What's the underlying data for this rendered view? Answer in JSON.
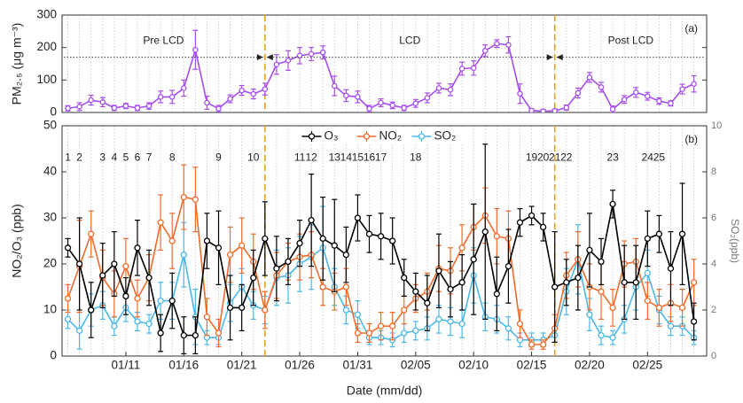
{
  "chart_data": [
    {
      "type": "line",
      "panel_label": "(a)",
      "ylabel": "PM₂.₅ (μg m⁻³)",
      "ylim": [
        0,
        300
      ],
      "yticks": [
        0,
        100,
        200,
        300
      ],
      "color": "#a64df0",
      "values": [
        13,
        18,
        38,
        32,
        14,
        20,
        14,
        20,
        48,
        48,
        75,
        193,
        30,
        12,
        42,
        68,
        57,
        72,
        148,
        160,
        175,
        180,
        185,
        82,
        52,
        48,
        12,
        30,
        22,
        14,
        28,
        45,
        75,
        70,
        135,
        137,
        190,
        212,
        208,
        58,
        6,
        4,
        5,
        15,
        60,
        108,
        78,
        10,
        40,
        62,
        50,
        35,
        28,
        72,
        88
      ],
      "errors": [
        8,
        12,
        15,
        14,
        8,
        8,
        8,
        10,
        18,
        20,
        25,
        60,
        20,
        10,
        12,
        15,
        15,
        18,
        30,
        30,
        25,
        20,
        20,
        30,
        18,
        18,
        10,
        12,
        10,
        8,
        12,
        15,
        15,
        18,
        20,
        22,
        18,
        12,
        25,
        30,
        5,
        5,
        5,
        8,
        15,
        15,
        15,
        10,
        12,
        15,
        12,
        10,
        8,
        15,
        25
      ],
      "phases": [
        "Pre LCD",
        "LCD",
        "Post LCD"
      ],
      "phase_boundaries": [
        17,
        42
      ],
      "phase_arrow_level": 170,
      "phase_label_level": 220,
      "divider_color": "#e8a31c"
    },
    {
      "type": "line",
      "panel_label": "(b)",
      "xlabel": "Date (mm/dd)",
      "ylabel": "NO₂/O₃ (ppb)",
      "y2label": "SO₂(ppb)",
      "categories": [
        null,
        null,
        null,
        null,
        null,
        "01/11",
        null,
        null,
        null,
        null,
        "01/16",
        null,
        null,
        null,
        null,
        "01/21",
        null,
        null,
        null,
        null,
        "01/26",
        null,
        null,
        null,
        null,
        "01/31",
        null,
        null,
        null,
        null,
        "02/05",
        null,
        null,
        null,
        null,
        "02/10",
        null,
        null,
        null,
        null,
        "02/15",
        null,
        null,
        null,
        null,
        "02/20",
        null,
        null,
        null,
        null,
        "02/25",
        null,
        null,
        null,
        null
      ],
      "ylim": [
        0,
        50
      ],
      "yticks": [
        0,
        10,
        20,
        30,
        40,
        50
      ],
      "y2lim": [
        0,
        10
      ],
      "y2ticks": [
        0,
        2,
        4,
        6,
        8,
        10
      ],
      "grid": true,
      "legend": "upper center",
      "event_level": 43,
      "event_labels": [
        "1",
        "2",
        null,
        "3",
        "4",
        "5",
        "6",
        "7",
        null,
        "8",
        null,
        null,
        null,
        "9",
        null,
        null,
        "10",
        null,
        null,
        null,
        "11",
        "12",
        null,
        "13",
        "14",
        "15",
        "16",
        "17",
        null,
        null,
        "18",
        null,
        null,
        null,
        null,
        null,
        null,
        null,
        null,
        null,
        "19",
        "20",
        "21",
        "22",
        null,
        null,
        null,
        "23",
        null,
        null,
        "24",
        "25",
        null,
        null,
        null
      ],
      "series": [
        {
          "name": "O₃",
          "color": "#000000",
          "values": [
            23.5,
            20,
            10,
            17.5,
            20,
            13,
            23.5,
            17,
            5,
            12,
            4.5,
            4.5,
            25,
            23.5,
            10.5,
            10.5,
            17,
            25.5,
            19,
            20.5,
            24.5,
            29.5,
            25.5,
            24,
            22,
            30,
            26.5,
            26,
            25,
            17,
            14,
            11.5,
            18.5,
            14.5,
            16,
            21,
            27,
            13.5,
            19.5,
            29,
            30.5,
            28,
            15,
            16,
            17,
            23,
            20.5,
            33,
            16,
            16,
            25.5,
            26.5,
            19,
            26.5,
            7.5
          ],
          "errors": [
            2,
            10,
            6,
            7,
            7,
            4,
            6,
            6,
            4,
            6,
            4,
            4,
            6,
            8,
            7,
            5,
            6,
            8,
            7,
            5,
            5,
            10,
            9,
            10,
            6,
            5,
            4,
            5,
            5,
            4,
            4,
            6,
            8,
            6,
            6,
            12,
            19,
            8,
            8,
            3,
            2,
            3,
            12,
            5,
            7,
            8,
            5,
            3,
            8,
            8,
            6,
            4,
            8,
            11,
            4
          ]
        },
        {
          "name": "NO₂",
          "color": "#f26b2a",
          "values": [
            12.5,
            19.5,
            26.5,
            17,
            13.5,
            19.5,
            12.5,
            17,
            29,
            25,
            34.5,
            34,
            8.5,
            5,
            22,
            24,
            20.5,
            10,
            17.5,
            20.5,
            21.5,
            22,
            15,
            14,
            15,
            5,
            5,
            6.5,
            6.5,
            10,
            12.5,
            14,
            19,
            18.5,
            23.5,
            28,
            30.5,
            26,
            25.5,
            7,
            2.5,
            2.5,
            6,
            17.5,
            21,
            15,
            14,
            10.5,
            20,
            20.5,
            12,
            10.5,
            11.5,
            10.5,
            16
          ],
          "errors": [
            3,
            10,
            5,
            6,
            5,
            6,
            4,
            5,
            6,
            6,
            7,
            7,
            4,
            3,
            6,
            6,
            6,
            4,
            5,
            4,
            5,
            5,
            4,
            4,
            4,
            2,
            2,
            3,
            3,
            3,
            3,
            4,
            5,
            5,
            5,
            5,
            6,
            6,
            6,
            3,
            1,
            1,
            3,
            5,
            6,
            5,
            6,
            4,
            5,
            5,
            4,
            4,
            4,
            4,
            5
          ]
        },
        {
          "name": "SO₂",
          "color": "#4ab8e8",
          "axis": "y2",
          "values": [
            1.6,
            1.1,
            2,
            2.2,
            1.3,
            2.1,
            1.5,
            1.4,
            2.4,
            2.4,
            4.4,
            1.7,
            0.8,
            0.8,
            2.3,
            3,
            2.2,
            2,
            3.4,
            3.5,
            4,
            4.3,
            4.7,
            3,
            2,
            1.8,
            0.8,
            0.8,
            0.7,
            1,
            1.1,
            1.2,
            1.6,
            1.5,
            1.4,
            3.5,
            1.7,
            1.6,
            1.2,
            0.7,
            0.7,
            0.7,
            0.9,
            2.8,
            4.2,
            1.8,
            0.9,
            0.8,
            1.6,
            3,
            3.6,
            2,
            1.3,
            1.3,
            0.8
          ],
          "errors": [
            0.4,
            0.8,
            0.7,
            0.6,
            0.4,
            0.6,
            0.4,
            0.4,
            0.8,
            0.8,
            1.4,
            1.2,
            0.3,
            0.3,
            0.8,
            0.8,
            0.6,
            0.6,
            1.2,
            1.2,
            1.2,
            1.4,
            1.8,
            0.8,
            0.6,
            0.6,
            0.3,
            0.3,
            0.3,
            0.4,
            0.4,
            0.5,
            0.6,
            0.6,
            0.6,
            1.2,
            0.6,
            0.6,
            0.5,
            0.3,
            0.3,
            0.3,
            0.3,
            1,
            1.5,
            0.7,
            0.4,
            0.3,
            0.6,
            1,
            1,
            0.6,
            0.4,
            0.4,
            0.3
          ]
        }
      ]
    }
  ]
}
